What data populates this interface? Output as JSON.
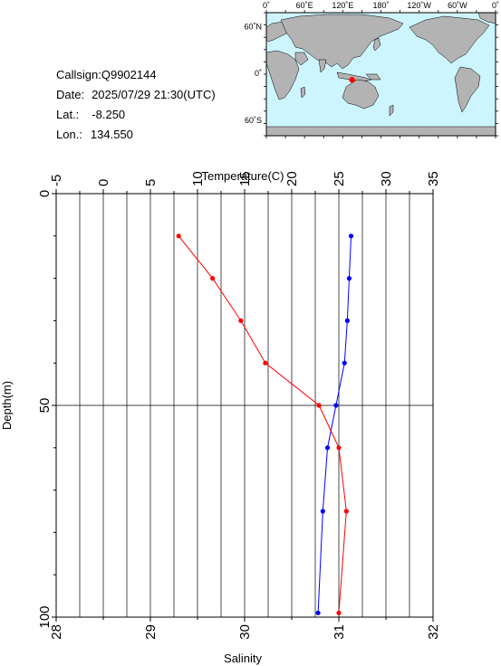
{
  "station": {
    "callsign_label": "Callsign:",
    "callsign": "Q9902144",
    "date_label": "Date:",
    "date": "2025/07/29 21:30(UTC)",
    "lat_label": "Lat.:",
    "lat": "-8.250",
    "lon_label": "Lon.:",
    "lon": "134.550"
  },
  "map": {
    "lon_ticks": [
      "0˚",
      "60˚E",
      "120˚E",
      "180˚",
      "120˚W",
      "60˚W",
      "0˚"
    ],
    "lat_ticks": [
      "60˚N",
      "0˚",
      "60˚S"
    ],
    "ocean_color": "#ccf5ff",
    "land_color": "#b3b3b3",
    "marker_color": "#ff0000",
    "marker": {
      "lon": 134.55,
      "lat": -8.25
    }
  },
  "chart_data": {
    "type": "line",
    "ylabel": "Depth(m)",
    "y_ticks": [
      0,
      50,
      100
    ],
    "ylim": [
      0,
      100
    ],
    "y_inverted": true,
    "grid": true,
    "temperature_axis": {
      "label": "Temperature(C)",
      "position": "top",
      "range": [
        -5,
        35
      ],
      "ticks": [
        -5,
        0,
        5,
        10,
        15,
        20,
        25,
        30,
        35
      ]
    },
    "salinity_axis": {
      "label": "Salinity",
      "position": "bottom",
      "range": [
        28,
        32
      ],
      "ticks": [
        28,
        29,
        30,
        31,
        32
      ]
    },
    "series": [
      {
        "axis": "temperature",
        "color": "#0000ff",
        "depth": [
          10,
          20,
          30,
          40,
          50,
          60,
          75,
          99
        ],
        "values": [
          26.3,
          26.1,
          25.9,
          25.6,
          24.7,
          23.8,
          23.3,
          22.8
        ]
      },
      {
        "axis": "salinity",
        "color": "#ff0000",
        "depth": [
          10,
          20,
          30,
          40,
          50,
          60,
          75,
          99
        ],
        "values": [
          29.3,
          29.66,
          29.96,
          30.22,
          30.79,
          31.0,
          31.08,
          31.0
        ]
      }
    ]
  }
}
